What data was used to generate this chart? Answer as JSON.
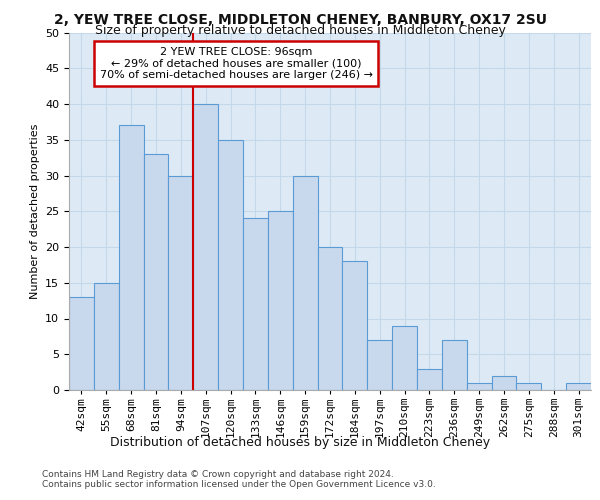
{
  "title1": "2, YEW TREE CLOSE, MIDDLETON CHENEY, BANBURY, OX17 2SU",
  "title2": "Size of property relative to detached houses in Middleton Cheney",
  "xlabel": "Distribution of detached houses by size in Middleton Cheney",
  "ylabel": "Number of detached properties",
  "categories": [
    "42sqm",
    "55sqm",
    "68sqm",
    "81sqm",
    "94sqm",
    "107sqm",
    "120sqm",
    "133sqm",
    "146sqm",
    "159sqm",
    "172sqm",
    "184sqm",
    "197sqm",
    "210sqm",
    "223sqm",
    "236sqm",
    "249sqm",
    "262sqm",
    "275sqm",
    "288sqm",
    "301sqm"
  ],
  "values": [
    13,
    15,
    37,
    33,
    30,
    40,
    35,
    24,
    25,
    30,
    20,
    18,
    7,
    9,
    3,
    7,
    1,
    2,
    1,
    0,
    1
  ],
  "bar_color": "#c9d9ed",
  "bar_edge_color": "#5b9bd5",
  "red_line_index": 4,
  "annotation_title": "2 YEW TREE CLOSE: 96sqm",
  "annotation_line1": "← 29% of detached houses are smaller (100)",
  "annotation_line2": "70% of semi-detached houses are larger (246) →",
  "annotation_box_color": "#ffffff",
  "annotation_box_edge": "#cc0000",
  "red_line_color": "#cc0000",
  "grid_color": "#c5d8ea",
  "plot_bg_color": "#ddeaf6",
  "fig_bg_color": "#ffffff",
  "ylim": [
    0,
    50
  ],
  "yticks": [
    0,
    5,
    10,
    15,
    20,
    25,
    30,
    35,
    40,
    45,
    50
  ],
  "footer1": "Contains HM Land Registry data © Crown copyright and database right 2024.",
  "footer2": "Contains public sector information licensed under the Open Government Licence v3.0.",
  "title1_fontsize": 10,
  "title2_fontsize": 9,
  "ylabel_fontsize": 8,
  "xlabel_fontsize": 9,
  "tick_fontsize": 8,
  "footer_fontsize": 6.5,
  "annot_fontsize": 8
}
